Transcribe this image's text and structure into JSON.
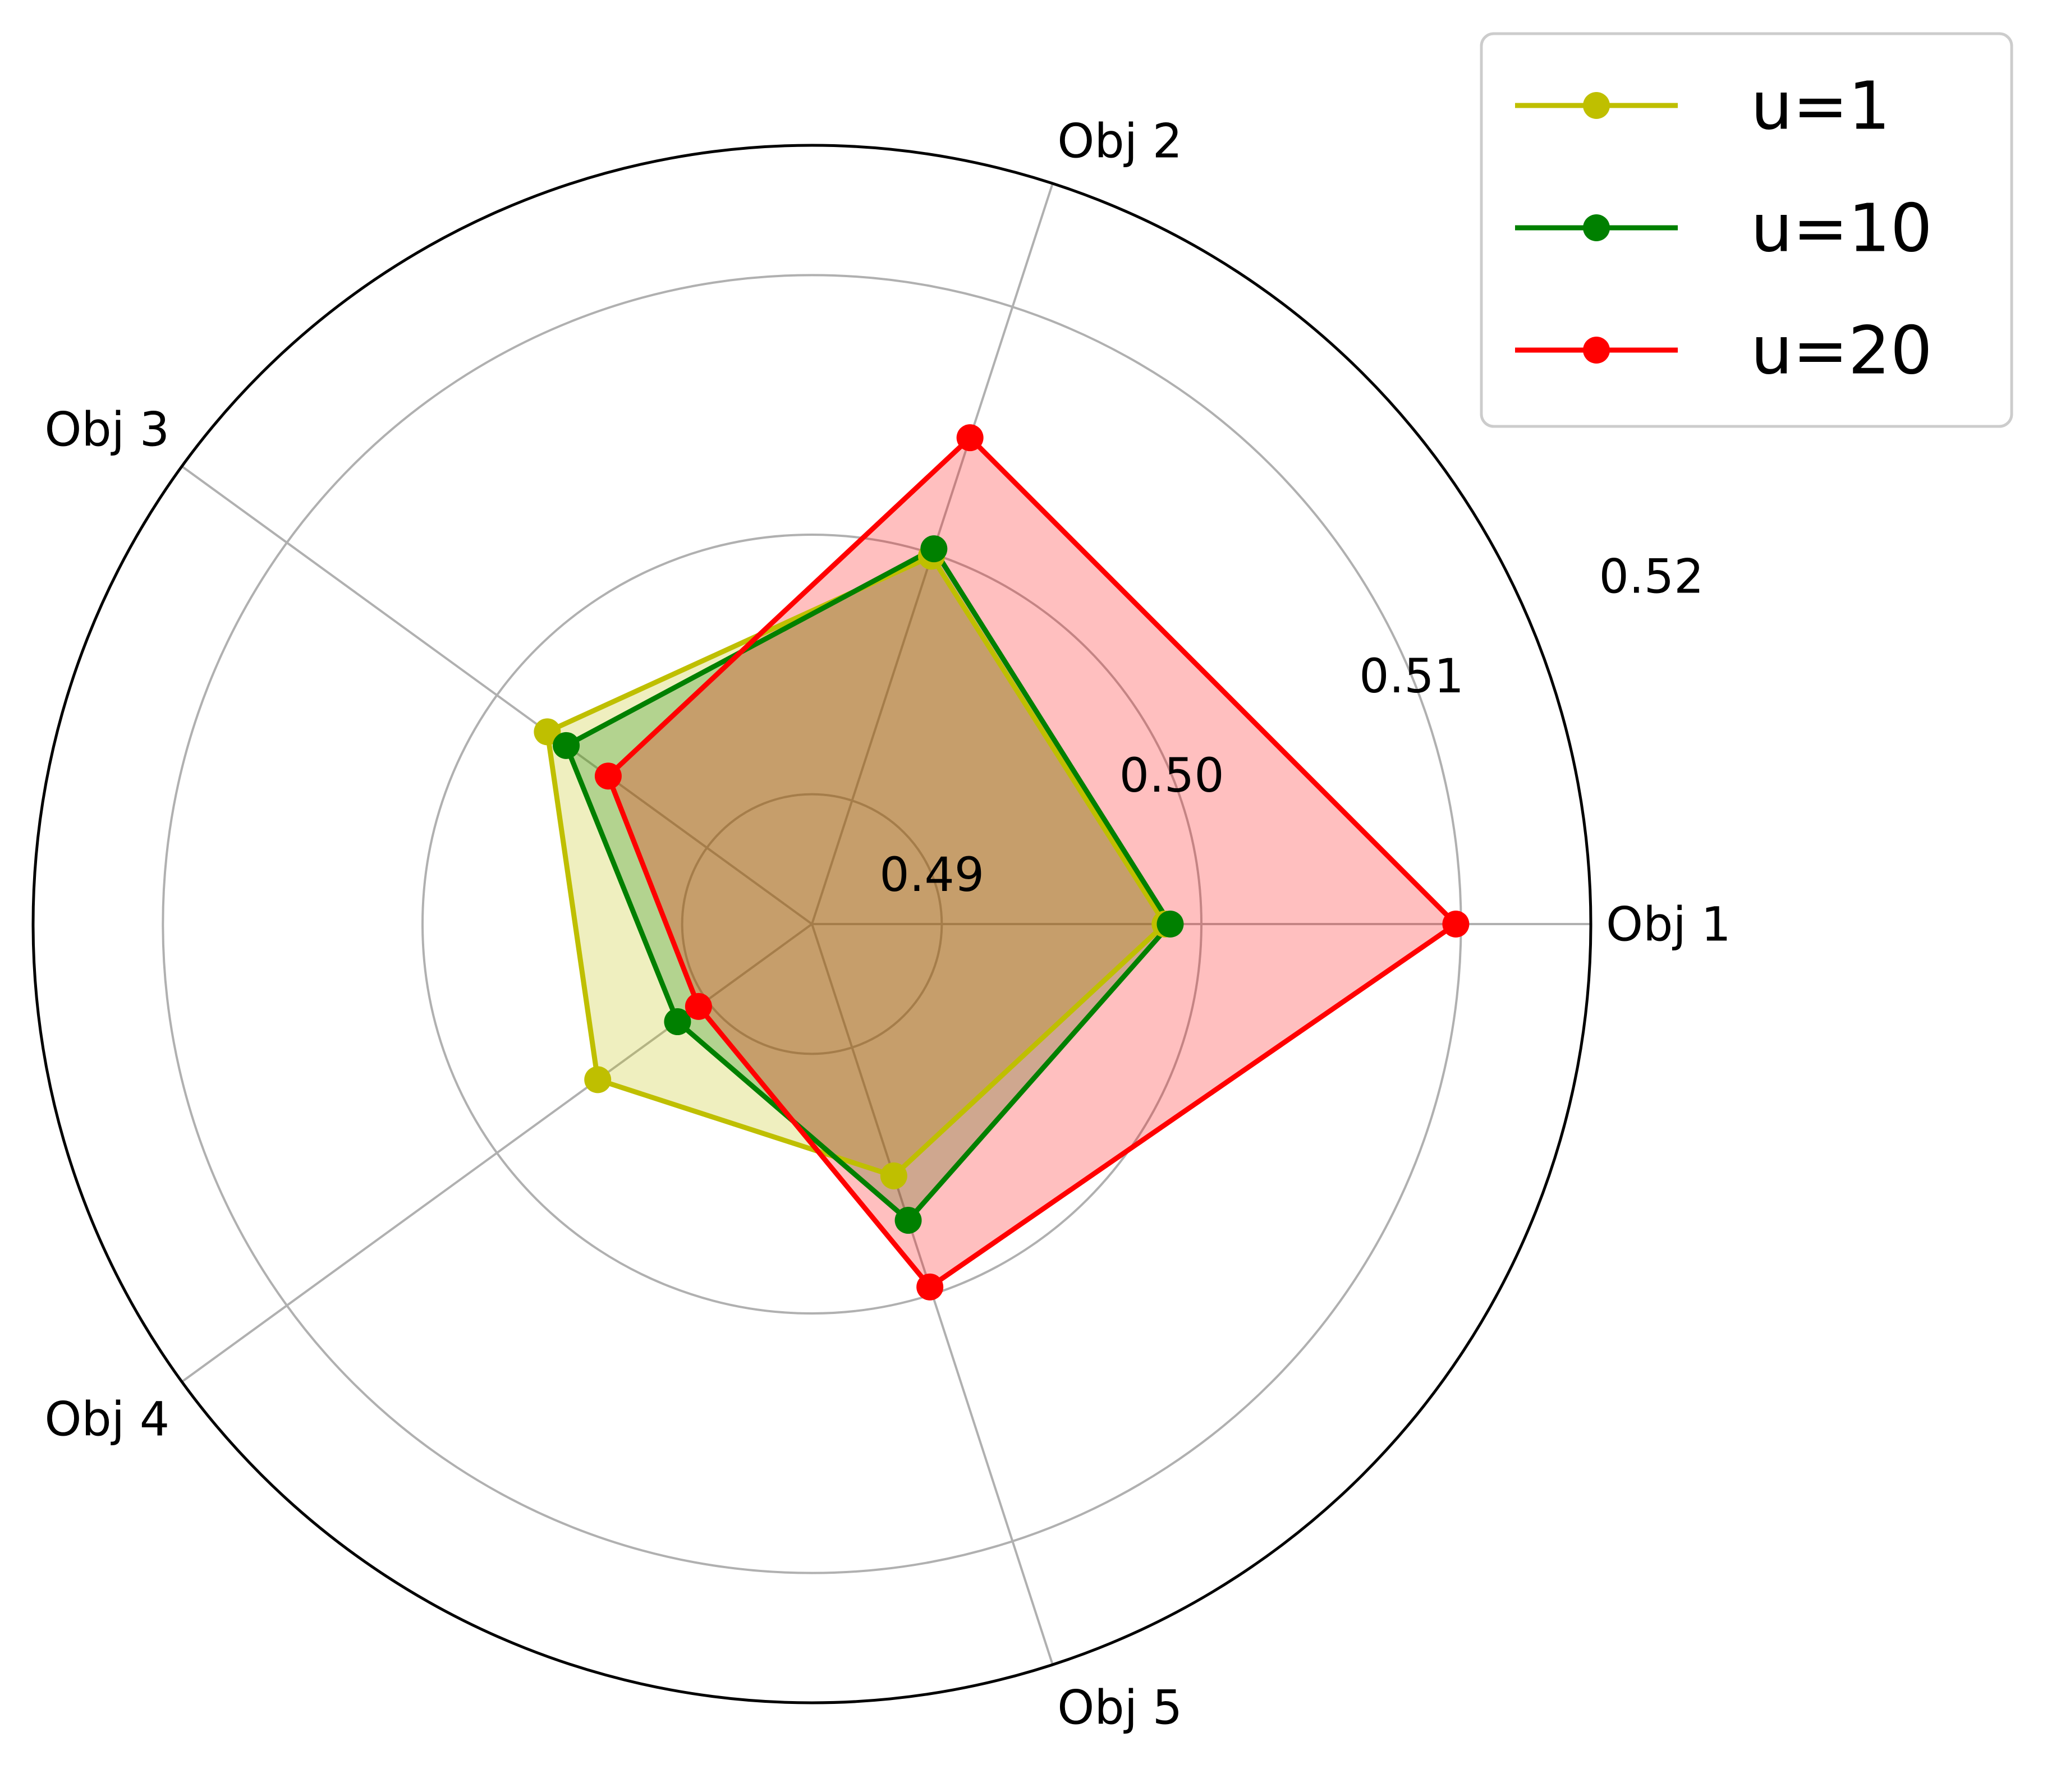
{
  "chart_data": {
    "type": "radar",
    "categories": [
      "Obj 1",
      "Obj 2",
      "Obj 3",
      "Obj 4",
      "Obj 5"
    ],
    "rlim": [
      0.485,
      0.515
    ],
    "rticks": [
      0.49,
      0.5,
      0.51
    ],
    "rtick_labels": [
      "0.49",
      "0.50",
      "0.51"
    ],
    "outer_label": "0.52",
    "grid": true,
    "legend_position": "top-right",
    "series": [
      {
        "name": "u=1",
        "color": "#bfbf00",
        "values": [
          0.4986,
          0.4999,
          0.4976,
          0.4952,
          0.4952
        ]
      },
      {
        "name": "u=10",
        "color": "#008000",
        "values": [
          0.4988,
          0.5002,
          0.4967,
          0.4914,
          0.497
        ]
      },
      {
        "name": "u=20",
        "color": "#ff0000",
        "values": [
          0.5098,
          0.5047,
          0.4947,
          0.4904,
          0.4997
        ]
      }
    ]
  }
}
